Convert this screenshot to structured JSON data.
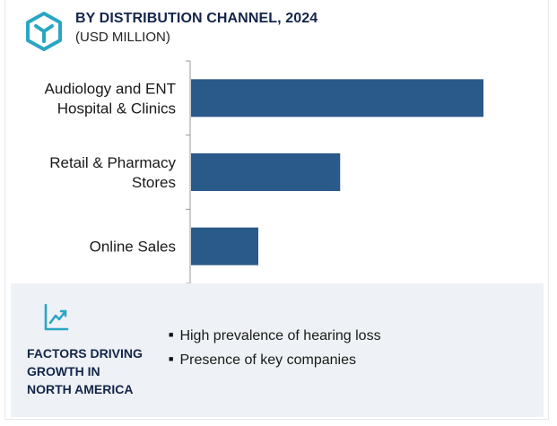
{
  "header": {
    "title": "BY DISTRIBUTION CHANNEL, 2024",
    "subtitle": "(USD MILLION)"
  },
  "chart_data": {
    "type": "bar",
    "orientation": "horizontal",
    "title": "BY DISTRIBUTION CHANNEL, 2024",
    "subtitle": "(USD MILLION)",
    "categories": [
      [
        "Audiology and ENT",
        "Hospital & Clinics"
      ],
      [
        "Retail & Pharmacy",
        "Stores"
      ],
      [
        "Online Sales"
      ]
    ],
    "values": [
      100,
      51,
      23
    ],
    "xlim": [
      0,
      100
    ],
    "bar_color": "#2a5a89",
    "grid": false,
    "value_axis_shown": false
  },
  "factors": {
    "heading": [
      "FACTORS DRIVING",
      "GROWTH IN",
      "NORTH AMERICA"
    ],
    "items": [
      "High prevalence of hearing loss",
      "Presence of key companies"
    ],
    "icon": "trend-chart-icon"
  },
  "colors": {
    "brand_teal": "#2aa6c4",
    "heading_navy": "#13264a",
    "panel_bg": "#eef1f5",
    "bar": "#2a5a89"
  }
}
